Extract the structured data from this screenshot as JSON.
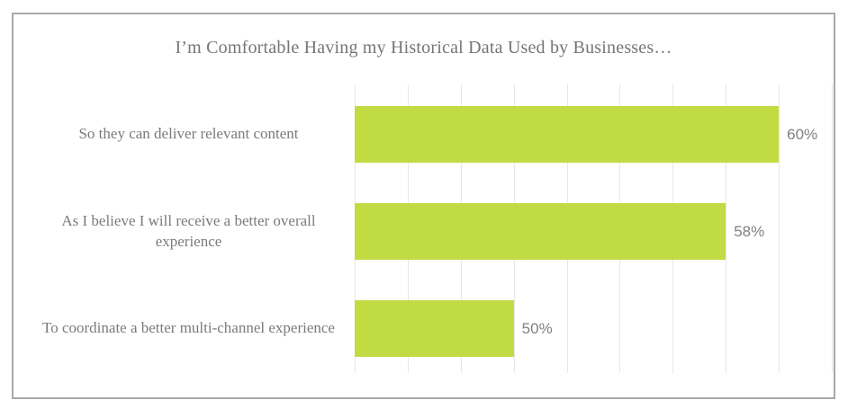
{
  "chart_data": {
    "type": "bar",
    "orientation": "horizontal",
    "title": "I’m Comfortable Having my Historical Data Used by Businesses…",
    "categories": [
      "So they can deliver relevant content",
      "As I believe I will receive a better overall experience",
      "To coordinate a better multi-channel experience"
    ],
    "values": [
      60,
      58,
      50
    ],
    "value_labels": [
      "60%",
      "58%",
      "50%"
    ],
    "xlim": [
      44,
      62
    ],
    "gridline_step": 2,
    "grid": "vertical-only",
    "legend": "none",
    "axis_tick_labels": "none",
    "colors": {
      "bar": "#c1dc43",
      "gridline": "#e7e7e7",
      "frame_border": "#a9a9a9",
      "title_text": "#757575",
      "category_text": "#7a7a7a",
      "value_text": "#7f7f7f",
      "background": "#ffffff"
    }
  }
}
